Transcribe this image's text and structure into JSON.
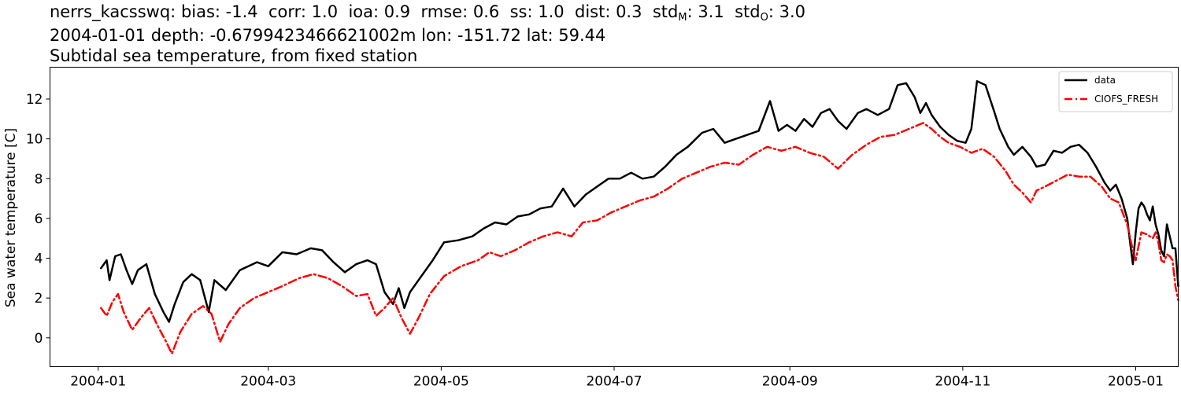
{
  "header": {
    "station": "nerrs_kacsswq:",
    "stats": [
      {
        "key": "bias",
        "text": "bias: -1.4"
      },
      {
        "key": "corr",
        "text": "corr: 1.0"
      },
      {
        "key": "ioa",
        "text": "ioa: 0.9"
      },
      {
        "key": "rmse",
        "text": "rmse: 0.6"
      },
      {
        "key": "ss",
        "text": "ss: 1.0"
      },
      {
        "key": "dist",
        "text": "dist: 0.3"
      }
    ],
    "std_label": "std",
    "std_m_sub": "M",
    "std_m_val": ": 3.1",
    "std_o_sub": "O",
    "std_o_val": ": 3.0",
    "line2": "2004-01-01 depth: -0.6799423466621002m lon: -151.72 lat: 59.44",
    "line3": "Subtidal sea temperature, from fixed station"
  },
  "chart_data": {
    "type": "line",
    "title": "",
    "xlabel": "",
    "ylabel": "Sea water temperature [C]",
    "xlim": [
      "2003-12-15",
      "2005-01-16"
    ],
    "ylim": [
      -1.45,
      13.6
    ],
    "grid": false,
    "legend_placement": "top-right",
    "xticks": [
      "2004-01",
      "2004-03",
      "2004-05",
      "2004-07",
      "2004-09",
      "2004-11",
      "2005-01"
    ],
    "yticks": [
      0,
      2,
      4,
      6,
      8,
      10,
      12
    ],
    "series": [
      {
        "name": "data",
        "color": "#000000",
        "style": "solid",
        "points": [
          [
            "2004-01-02",
            3.5
          ],
          [
            "2004-01-04",
            3.9
          ],
          [
            "2004-01-05",
            2.9
          ],
          [
            "2004-01-07",
            4.1
          ],
          [
            "2004-01-09",
            4.2
          ],
          [
            "2004-01-11",
            3.4
          ],
          [
            "2004-01-13",
            2.7
          ],
          [
            "2004-01-15",
            3.4
          ],
          [
            "2004-01-18",
            3.7
          ],
          [
            "2004-01-21",
            2.2
          ],
          [
            "2004-01-24",
            1.3
          ],
          [
            "2004-01-26",
            0.8
          ],
          [
            "2004-01-28",
            1.7
          ],
          [
            "2004-01-31",
            2.8
          ],
          [
            "2004-02-03",
            3.2
          ],
          [
            "2004-02-06",
            2.9
          ],
          [
            "2004-02-09",
            1.3
          ],
          [
            "2004-02-11",
            2.9
          ],
          [
            "2004-02-15",
            2.4
          ],
          [
            "2004-02-20",
            3.4
          ],
          [
            "2004-02-26",
            3.8
          ],
          [
            "2004-03-01",
            3.6
          ],
          [
            "2004-03-06",
            4.3
          ],
          [
            "2004-03-11",
            4.2
          ],
          [
            "2004-03-16",
            4.5
          ],
          [
            "2004-03-20",
            4.4
          ],
          [
            "2004-03-24",
            3.8
          ],
          [
            "2004-03-28",
            3.3
          ],
          [
            "2004-04-01",
            3.7
          ],
          [
            "2004-04-05",
            3.9
          ],
          [
            "2004-04-08",
            3.7
          ],
          [
            "2004-04-11",
            2.3
          ],
          [
            "2004-04-14",
            1.7
          ],
          [
            "2004-04-16",
            2.5
          ],
          [
            "2004-04-18",
            1.5
          ],
          [
            "2004-04-20",
            2.3
          ],
          [
            "2004-04-24",
            3.1
          ],
          [
            "2004-04-28",
            3.9
          ],
          [
            "2004-05-02",
            4.8
          ],
          [
            "2004-05-07",
            4.9
          ],
          [
            "2004-05-12",
            5.1
          ],
          [
            "2004-05-16",
            5.5
          ],
          [
            "2004-05-20",
            5.8
          ],
          [
            "2004-05-24",
            5.7
          ],
          [
            "2004-05-28",
            6.1
          ],
          [
            "2004-06-01",
            6.2
          ],
          [
            "2004-06-05",
            6.5
          ],
          [
            "2004-06-09",
            6.6
          ],
          [
            "2004-06-13",
            7.5
          ],
          [
            "2004-06-17",
            6.6
          ],
          [
            "2004-06-21",
            7.2
          ],
          [
            "2004-06-25",
            7.6
          ],
          [
            "2004-06-29",
            8.0
          ],
          [
            "2004-07-03",
            8.0
          ],
          [
            "2004-07-07",
            8.3
          ],
          [
            "2004-07-11",
            8.0
          ],
          [
            "2004-07-15",
            8.1
          ],
          [
            "2004-07-19",
            8.6
          ],
          [
            "2004-07-23",
            9.2
          ],
          [
            "2004-07-27",
            9.6
          ],
          [
            "2004-08-01",
            10.3
          ],
          [
            "2004-08-05",
            10.5
          ],
          [
            "2004-08-09",
            9.8
          ],
          [
            "2004-08-13",
            10.0
          ],
          [
            "2004-08-17",
            10.2
          ],
          [
            "2004-08-21",
            10.4
          ],
          [
            "2004-08-25",
            11.9
          ],
          [
            "2004-08-28",
            10.4
          ],
          [
            "2004-08-31",
            10.7
          ],
          [
            "2004-09-03",
            10.4
          ],
          [
            "2004-09-06",
            11.0
          ],
          [
            "2004-09-09",
            10.6
          ],
          [
            "2004-09-12",
            11.3
          ],
          [
            "2004-09-15",
            11.5
          ],
          [
            "2004-09-18",
            10.9
          ],
          [
            "2004-09-21",
            10.5
          ],
          [
            "2004-09-25",
            11.3
          ],
          [
            "2004-09-28",
            11.5
          ],
          [
            "2004-10-02",
            11.2
          ],
          [
            "2004-10-06",
            11.5
          ],
          [
            "2004-10-09",
            12.7
          ],
          [
            "2004-10-12",
            12.8
          ],
          [
            "2004-10-15",
            12.1
          ],
          [
            "2004-10-17",
            11.3
          ],
          [
            "2004-10-19",
            11.8
          ],
          [
            "2004-10-21",
            11.2
          ],
          [
            "2004-10-24",
            10.6
          ],
          [
            "2004-10-27",
            10.2
          ],
          [
            "2004-10-30",
            9.9
          ],
          [
            "2004-11-02",
            9.8
          ],
          [
            "2004-11-04",
            10.5
          ],
          [
            "2004-11-06",
            12.9
          ],
          [
            "2004-11-09",
            12.7
          ],
          [
            "2004-11-12",
            11.4
          ],
          [
            "2004-11-14",
            10.5
          ],
          [
            "2004-11-17",
            9.6
          ],
          [
            "2004-11-19",
            9.2
          ],
          [
            "2004-11-22",
            9.6
          ],
          [
            "2004-11-25",
            9.1
          ],
          [
            "2004-11-27",
            8.6
          ],
          [
            "2004-11-30",
            8.7
          ],
          [
            "2004-12-03",
            9.4
          ],
          [
            "2004-12-06",
            9.3
          ],
          [
            "2004-12-09",
            9.6
          ],
          [
            "2004-12-12",
            9.7
          ],
          [
            "2004-12-15",
            9.3
          ],
          [
            "2004-12-18",
            8.6
          ],
          [
            "2004-12-21",
            7.8
          ],
          [
            "2004-12-23",
            7.4
          ],
          [
            "2004-12-25",
            7.7
          ],
          [
            "2004-12-27",
            7.0
          ],
          [
            "2004-12-29",
            6.0
          ],
          [
            "2004-12-30",
            4.8
          ],
          [
            "2004-12-31",
            3.7
          ],
          [
            "2005-01-01",
            5.3
          ],
          [
            "2005-01-02",
            6.5
          ],
          [
            "2005-01-03",
            6.8
          ],
          [
            "2005-01-04",
            6.6
          ],
          [
            "2005-01-05",
            6.2
          ],
          [
            "2005-01-06",
            5.9
          ],
          [
            "2005-01-07",
            6.6
          ],
          [
            "2005-01-08",
            5.7
          ],
          [
            "2005-01-09",
            5.2
          ],
          [
            "2005-01-10",
            4.4
          ],
          [
            "2005-01-11",
            4.1
          ],
          [
            "2005-01-12",
            5.7
          ],
          [
            "2005-01-13",
            5.1
          ],
          [
            "2005-01-14",
            4.5
          ],
          [
            "2005-01-15",
            4.5
          ],
          [
            "2005-01-16",
            2.6
          ]
        ]
      },
      {
        "name": "CIOFS_FRESH",
        "color": "#ff0000",
        "style": "dashdot",
        "points": [
          [
            "2004-01-02",
            1.5
          ],
          [
            "2004-01-04",
            1.1
          ],
          [
            "2004-01-06",
            1.8
          ],
          [
            "2004-01-08",
            2.2
          ],
          [
            "2004-01-10",
            1.3
          ],
          [
            "2004-01-13",
            0.4
          ],
          [
            "2004-01-16",
            1.0
          ],
          [
            "2004-01-19",
            1.5
          ],
          [
            "2004-01-22",
            0.6
          ],
          [
            "2004-01-25",
            -0.2
          ],
          [
            "2004-01-27",
            -0.8
          ],
          [
            "2004-01-30",
            0.3
          ],
          [
            "2004-02-03",
            1.2
          ],
          [
            "2004-02-07",
            1.6
          ],
          [
            "2004-02-10",
            1.2
          ],
          [
            "2004-02-13",
            -0.2
          ],
          [
            "2004-02-16",
            0.7
          ],
          [
            "2004-02-20",
            1.5
          ],
          [
            "2004-02-25",
            2.0
          ],
          [
            "2004-03-01",
            2.3
          ],
          [
            "2004-03-06",
            2.6
          ],
          [
            "2004-03-12",
            3.0
          ],
          [
            "2004-03-17",
            3.2
          ],
          [
            "2004-03-22",
            3.0
          ],
          [
            "2004-03-27",
            2.6
          ],
          [
            "2004-04-01",
            2.1
          ],
          [
            "2004-04-05",
            2.2
          ],
          [
            "2004-04-08",
            1.1
          ],
          [
            "2004-04-11",
            1.5
          ],
          [
            "2004-04-14",
            2.0
          ],
          [
            "2004-04-17",
            1.0
          ],
          [
            "2004-04-20",
            0.2
          ],
          [
            "2004-04-23",
            1.0
          ],
          [
            "2004-04-27",
            2.2
          ],
          [
            "2004-05-02",
            3.1
          ],
          [
            "2004-05-08",
            3.6
          ],
          [
            "2004-05-14",
            3.9
          ],
          [
            "2004-05-18",
            4.3
          ],
          [
            "2004-05-22",
            4.1
          ],
          [
            "2004-05-27",
            4.4
          ],
          [
            "2004-06-01",
            4.8
          ],
          [
            "2004-06-06",
            5.1
          ],
          [
            "2004-06-11",
            5.3
          ],
          [
            "2004-06-16",
            5.1
          ],
          [
            "2004-06-20",
            5.8
          ],
          [
            "2004-06-25",
            5.9
          ],
          [
            "2004-06-30",
            6.3
          ],
          [
            "2004-07-05",
            6.6
          ],
          [
            "2004-07-10",
            6.9
          ],
          [
            "2004-07-15",
            7.1
          ],
          [
            "2004-07-20",
            7.5
          ],
          [
            "2004-07-25",
            8.0
          ],
          [
            "2004-07-30",
            8.3
          ],
          [
            "2004-08-04",
            8.6
          ],
          [
            "2004-08-09",
            8.8
          ],
          [
            "2004-08-14",
            8.7
          ],
          [
            "2004-08-19",
            9.2
          ],
          [
            "2004-08-24",
            9.6
          ],
          [
            "2004-08-29",
            9.4
          ],
          [
            "2004-09-03",
            9.6
          ],
          [
            "2004-09-08",
            9.3
          ],
          [
            "2004-09-13",
            9.1
          ],
          [
            "2004-09-18",
            8.5
          ],
          [
            "2004-09-23",
            9.2
          ],
          [
            "2004-09-28",
            9.7
          ],
          [
            "2004-10-03",
            10.1
          ],
          [
            "2004-10-08",
            10.2
          ],
          [
            "2004-10-13",
            10.5
          ],
          [
            "2004-10-18",
            10.8
          ],
          [
            "2004-10-21",
            10.5
          ],
          [
            "2004-10-24",
            10.1
          ],
          [
            "2004-10-27",
            9.8
          ],
          [
            "2004-10-31",
            9.6
          ],
          [
            "2004-11-04",
            9.3
          ],
          [
            "2004-11-08",
            9.5
          ],
          [
            "2004-11-12",
            9.1
          ],
          [
            "2004-11-16",
            8.4
          ],
          [
            "2004-11-19",
            7.7
          ],
          [
            "2004-11-22",
            7.3
          ],
          [
            "2004-11-25",
            6.8
          ],
          [
            "2004-11-27",
            7.4
          ],
          [
            "2004-11-30",
            7.6
          ],
          [
            "2004-12-04",
            7.9
          ],
          [
            "2004-12-08",
            8.2
          ],
          [
            "2004-12-12",
            8.1
          ],
          [
            "2004-12-16",
            8.1
          ],
          [
            "2004-12-20",
            7.6
          ],
          [
            "2004-12-23",
            7.0
          ],
          [
            "2004-12-26",
            6.8
          ],
          [
            "2004-12-29",
            5.7
          ],
          [
            "2004-12-31",
            4.4
          ],
          [
            "2005-01-01",
            3.9
          ],
          [
            "2005-01-02",
            4.6
          ],
          [
            "2005-01-03",
            5.3
          ],
          [
            "2005-01-05",
            5.2
          ],
          [
            "2005-01-07",
            5.0
          ],
          [
            "2005-01-08",
            5.3
          ],
          [
            "2005-01-09",
            4.8
          ],
          [
            "2005-01-10",
            3.9
          ],
          [
            "2005-01-11",
            3.8
          ],
          [
            "2005-01-12",
            4.2
          ],
          [
            "2005-01-13",
            4.1
          ],
          [
            "2005-01-14",
            3.9
          ],
          [
            "2005-01-15",
            2.6
          ],
          [
            "2005-01-16",
            1.9
          ]
        ]
      }
    ]
  }
}
